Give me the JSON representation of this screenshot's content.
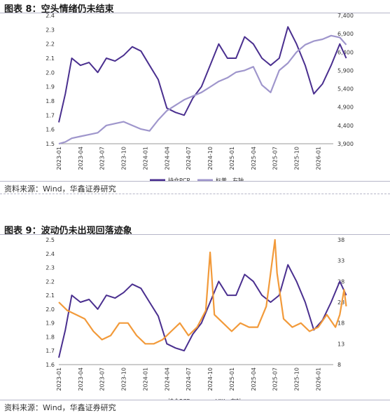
{
  "figures": [
    {
      "title": "图表 8：空头情绪仍未结束",
      "source": "资料来源：Wind，华鑫证券研究"
    },
    {
      "title": "图表 9：波动仍未出现回落迹象",
      "source": "资料来源：Wind，华鑫证券研究"
    }
  ],
  "colors": {
    "pcr": "#4a2f8f",
    "index": "#9f96cc",
    "vix": "#f29a3a"
  },
  "chart_data": [
    {
      "type": "line",
      "x_ticks": [
        "2023-01",
        "2023-04",
        "2023-07",
        "2023-10",
        "2024-01",
        "2024-04",
        "2024-07",
        "2024-10",
        "2025-01",
        "2025-04",
        "2025-07",
        "2025-10",
        "2026-01"
      ],
      "ylim": [
        1.5,
        2.4
      ],
      "y_ticks": [
        "1.5",
        "1.6",
        "1.7",
        "1.8",
        "1.9",
        "2.0",
        "2.1",
        "2.2",
        "2.3",
        "2.4"
      ],
      "y2lim": [
        3900,
        7400
      ],
      "y2_ticks": [
        "3,900",
        "4,400",
        "4,900",
        "5,400",
        "5,900",
        "6,400",
        "6,900",
        "7,400"
      ],
      "grid": false,
      "legend_position": "bottom-center",
      "series": [
        {
          "name": "持仓PCR",
          "axis": "left",
          "color_key": "pcr",
          "x": [
            0,
            0.3,
            0.6,
            1,
            1.4,
            1.8,
            2.2,
            2.6,
            3,
            3.4,
            3.8,
            4.2,
            4.6,
            5,
            5.4,
            5.8,
            6.2,
            6.6,
            7,
            7.4,
            7.8,
            8.2,
            8.6,
            9,
            9.4,
            9.8,
            10.2,
            10.6,
            11,
            11.4,
            11.8,
            12.2,
            12.6,
            13,
            13.3
          ],
          "y": [
            1.65,
            1.85,
            2.1,
            2.05,
            2.07,
            2.0,
            2.1,
            2.08,
            2.12,
            2.18,
            2.15,
            2.05,
            1.95,
            1.75,
            1.72,
            1.7,
            1.82,
            1.9,
            2.05,
            2.2,
            2.1,
            2.1,
            2.25,
            2.2,
            2.1,
            2.05,
            2.1,
            2.32,
            2.2,
            2.05,
            1.85,
            1.92,
            2.05,
            2.2,
            2.1
          ]
        },
        {
          "name": "标普，右轴",
          "axis": "right",
          "color_key": "index",
          "x": [
            0,
            0.3,
            0.6,
            1,
            1.4,
            1.8,
            2.2,
            2.6,
            3,
            3.4,
            3.8,
            4.2,
            4.6,
            5,
            5.4,
            5.8,
            6.2,
            6.6,
            7,
            7.4,
            7.8,
            8.2,
            8.6,
            9,
            9.4,
            9.8,
            10.2,
            10.6,
            11,
            11.4,
            11.8,
            12.2,
            12.6,
            13,
            13.3
          ],
          "y": [
            3900,
            3950,
            4050,
            4100,
            4150,
            4200,
            4400,
            4450,
            4500,
            4400,
            4300,
            4250,
            4550,
            4800,
            4950,
            5100,
            5200,
            5300,
            5450,
            5600,
            5700,
            5850,
            5900,
            6000,
            5500,
            5300,
            5900,
            6100,
            6400,
            6600,
            6700,
            6750,
            6850,
            6800,
            6600
          ]
        }
      ]
    },
    {
      "type": "line",
      "x_ticks": [
        "2023-01",
        "2023-04",
        "2023-07",
        "2023-10",
        "2024-01",
        "2024-04",
        "2024-07",
        "2024-10",
        "2025-01",
        "2025-04",
        "2025-07",
        "2025-10",
        "2026-01"
      ],
      "ylim": [
        1.6,
        2.5
      ],
      "y_ticks": [
        "1.6",
        "1.7",
        "1.8",
        "1.9",
        "2.0",
        "2.1",
        "2.2",
        "2.3",
        "2.4",
        "2.5"
      ],
      "y2lim": [
        8,
        38
      ],
      "y2_ticks": [
        "8",
        "13",
        "18",
        "23",
        "28",
        "33",
        "38"
      ],
      "grid": false,
      "legend_position": "bottom-center",
      "series": [
        {
          "name": "持仓PCR",
          "axis": "left",
          "color_key": "pcr",
          "x": [
            0,
            0.3,
            0.6,
            1,
            1.4,
            1.8,
            2.2,
            2.6,
            3,
            3.4,
            3.8,
            4.2,
            4.6,
            5,
            5.4,
            5.8,
            6.2,
            6.6,
            7,
            7.4,
            7.8,
            8.2,
            8.6,
            9,
            9.4,
            9.8,
            10.2,
            10.6,
            11,
            11.4,
            11.8,
            12.2,
            12.6,
            13,
            13.3
          ],
          "y": [
            1.65,
            1.85,
            2.1,
            2.05,
            2.07,
            2.0,
            2.1,
            2.08,
            2.12,
            2.18,
            2.15,
            2.05,
            1.95,
            1.75,
            1.72,
            1.7,
            1.82,
            1.9,
            2.05,
            2.2,
            2.1,
            2.1,
            2.25,
            2.2,
            2.1,
            2.05,
            2.1,
            2.32,
            2.2,
            2.05,
            1.85,
            1.92,
            2.05,
            2.2,
            2.1
          ]
        },
        {
          "name": "VIX，右轴",
          "axis": "right",
          "color_key": "vix",
          "x": [
            0,
            0.4,
            0.8,
            1.2,
            1.6,
            2,
            2.4,
            2.8,
            3.2,
            3.6,
            4,
            4.4,
            4.8,
            5.2,
            5.6,
            6,
            6.4,
            6.8,
            7,
            7.2,
            7.6,
            8,
            8.4,
            8.8,
            9.2,
            9.6,
            10,
            10.1,
            10.4,
            10.8,
            11.2,
            11.6,
            12,
            12.4,
            12.8,
            13,
            13.2,
            13.3
          ],
          "y": [
            23,
            21,
            20,
            19,
            16,
            14,
            15,
            18,
            18,
            15,
            13,
            13,
            14,
            16,
            18,
            15,
            17,
            21,
            35,
            20,
            18,
            16,
            18,
            17,
            17,
            22,
            38,
            30,
            19,
            17,
            18,
            16,
            17,
            20,
            17,
            20,
            26,
            22
          ]
        }
      ]
    }
  ]
}
